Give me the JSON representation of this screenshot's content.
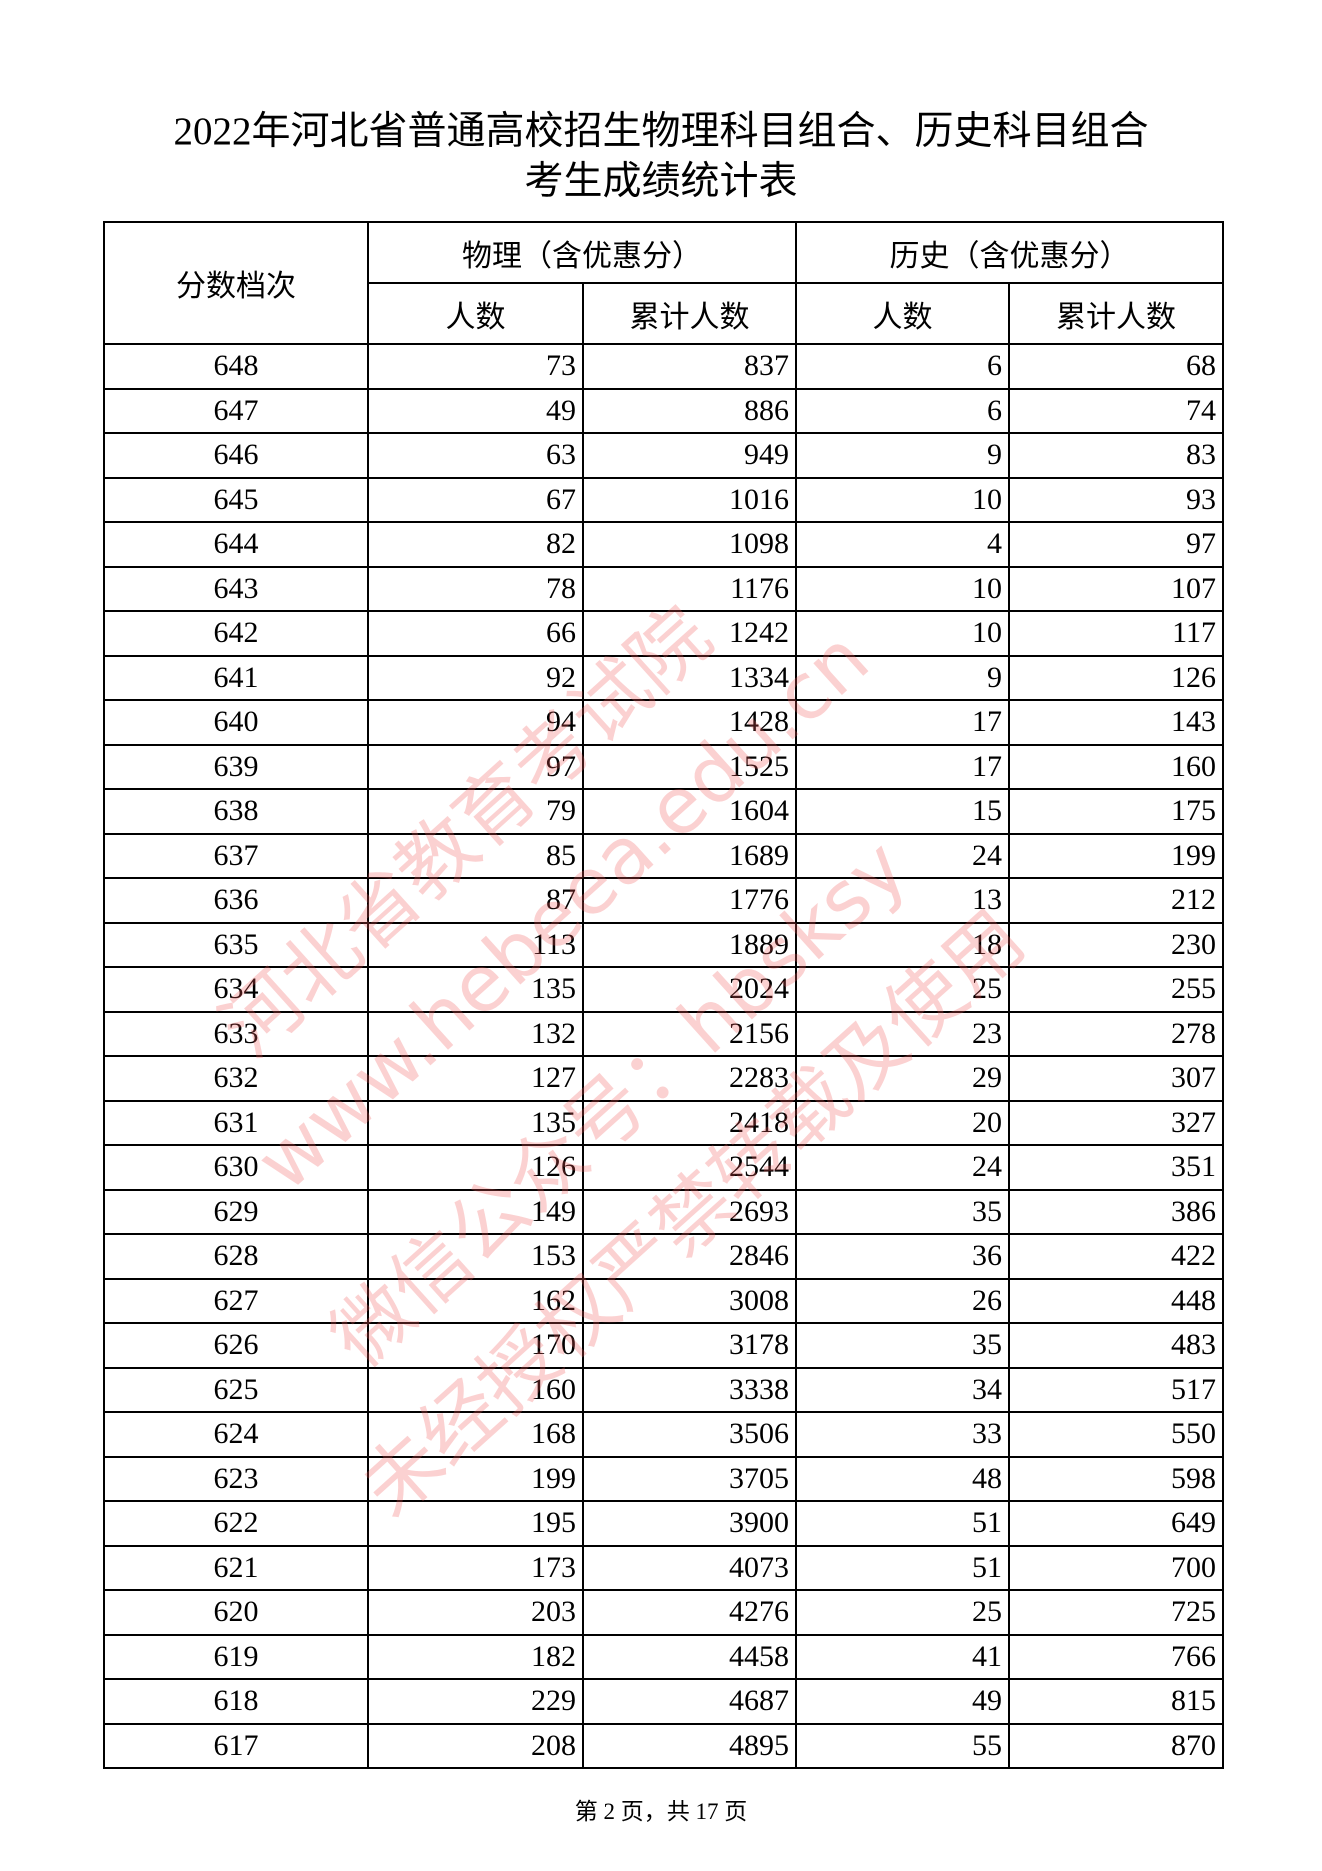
{
  "title": {
    "line1": "2022年河北省普通高校招生物理科目组合、历史科目组合",
    "line2": "考生成绩统计表"
  },
  "table": {
    "headers": {
      "score": "分数档次",
      "physics": "物理（含优惠分）",
      "history": "历史（含优惠分）",
      "count": "人数",
      "cumulative": "累计人数"
    },
    "rows": [
      [
        "648",
        "73",
        "837",
        "6",
        "68"
      ],
      [
        "647",
        "49",
        "886",
        "6",
        "74"
      ],
      [
        "646",
        "63",
        "949",
        "9",
        "83"
      ],
      [
        "645",
        "67",
        "1016",
        "10",
        "93"
      ],
      [
        "644",
        "82",
        "1098",
        "4",
        "97"
      ],
      [
        "643",
        "78",
        "1176",
        "10",
        "107"
      ],
      [
        "642",
        "66",
        "1242",
        "10",
        "117"
      ],
      [
        "641",
        "92",
        "1334",
        "9",
        "126"
      ],
      [
        "640",
        "94",
        "1428",
        "17",
        "143"
      ],
      [
        "639",
        "97",
        "1525",
        "17",
        "160"
      ],
      [
        "638",
        "79",
        "1604",
        "15",
        "175"
      ],
      [
        "637",
        "85",
        "1689",
        "24",
        "199"
      ],
      [
        "636",
        "87",
        "1776",
        "13",
        "212"
      ],
      [
        "635",
        "113",
        "1889",
        "18",
        "230"
      ],
      [
        "634",
        "135",
        "2024",
        "25",
        "255"
      ],
      [
        "633",
        "132",
        "2156",
        "23",
        "278"
      ],
      [
        "632",
        "127",
        "2283",
        "29",
        "307"
      ],
      [
        "631",
        "135",
        "2418",
        "20",
        "327"
      ],
      [
        "630",
        "126",
        "2544",
        "24",
        "351"
      ],
      [
        "629",
        "149",
        "2693",
        "35",
        "386"
      ],
      [
        "628",
        "153",
        "2846",
        "36",
        "422"
      ],
      [
        "627",
        "162",
        "3008",
        "26",
        "448"
      ],
      [
        "626",
        "170",
        "3178",
        "35",
        "483"
      ],
      [
        "625",
        "160",
        "3338",
        "34",
        "517"
      ],
      [
        "624",
        "168",
        "3506",
        "33",
        "550"
      ],
      [
        "623",
        "199",
        "3705",
        "48",
        "598"
      ],
      [
        "622",
        "195",
        "3900",
        "51",
        "649"
      ],
      [
        "621",
        "173",
        "4073",
        "51",
        "700"
      ],
      [
        "620",
        "203",
        "4276",
        "25",
        "725"
      ],
      [
        "619",
        "182",
        "4458",
        "41",
        "766"
      ],
      [
        "618",
        "229",
        "4687",
        "49",
        "815"
      ],
      [
        "617",
        "208",
        "4895",
        "55",
        "870"
      ]
    ]
  },
  "watermark": {
    "color": "#f05a5a",
    "lines": [
      "河北省教育考试院",
      "www.hebeea.edu.cn",
      "微信公众号：hbsksy",
      "未经授权严禁转载及使用"
    ]
  },
  "footer": "第 2 页，共 17 页"
}
